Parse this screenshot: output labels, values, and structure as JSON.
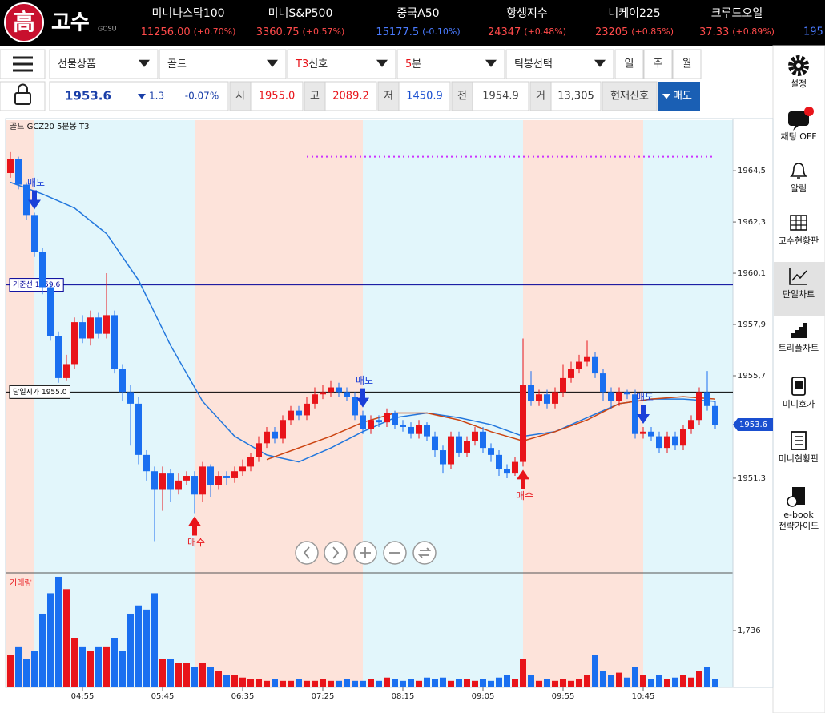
{
  "header": {
    "logo_mark": "高",
    "logo_text": "고수",
    "logo_sub": "GOSU",
    "tickers": [
      {
        "name": "미니나스닥100",
        "price": "11256.00",
        "change": "(+0.70%)",
        "color": "#ff4a4a"
      },
      {
        "name": "미니S&P500",
        "price": "3360.75",
        "change": "(+0.57%)",
        "color": "#ff4a4a"
      },
      {
        "name": "중국A50",
        "price": "15177.5",
        "change": "(-0.10%)",
        "color": "#4a7bff"
      },
      {
        "name": "항셍지수",
        "price": "24347",
        "change": "(+0.48%)",
        "color": "#ff4a4a"
      },
      {
        "name": "니케이225",
        "price": "23205",
        "change": "(+0.85%)",
        "color": "#ff4a4a"
      },
      {
        "name": "크루드오일",
        "price": "37.33",
        "change": "(+0.89%)",
        "color": "#ff4a4a"
      }
    ],
    "ticker_clipped": "195"
  },
  "toolbar": {
    "selects": [
      {
        "text": "선물상품"
      },
      {
        "text": "골드"
      },
      {
        "accent": "T3",
        "text": "신호"
      },
      {
        "accent": "5",
        "text": "분"
      },
      {
        "text": "틱봉선택"
      }
    ],
    "periods": [
      "일",
      "주",
      "월"
    ]
  },
  "quote": {
    "price": "1953.6",
    "change": "1.3",
    "change_pct": "-0.07%",
    "fields": [
      {
        "label": "시",
        "value": "1955.0",
        "color": "#e8141a"
      },
      {
        "label": "고",
        "value": "2089.2",
        "color": "#e8141a"
      },
      {
        "label": "저",
        "value": "1450.9",
        "color": "#1a4fd0"
      },
      {
        "label": "전",
        "value": "1954.9",
        "color": "#444444"
      },
      {
        "label": "거",
        "value": "13,305",
        "color": "#333333"
      }
    ],
    "signal_label": "현재신호",
    "signal": "매도"
  },
  "sidebar": [
    {
      "label": "설정"
    },
    {
      "label": "채팅 OFF"
    },
    {
      "label": "알림"
    },
    {
      "label": "고수현황판"
    },
    {
      "label": "단일차트",
      "selected": true
    },
    {
      "label": "트리플차트"
    },
    {
      "label": "미니호가"
    },
    {
      "label": "미니현황판"
    },
    {
      "label": "e-book",
      "label2": "전략가이드"
    }
  ],
  "chart_data": {
    "type": "candlestick",
    "title": "골드 GCZ20 5분봉 T3",
    "up_color": "#e8141a",
    "down_color": "#1a6ff0",
    "open": [
      1964.4,
      1965.0,
      1963.9,
      1962.6,
      1961.0,
      1959.5,
      1957.4,
      1955.6,
      1956.2,
      1958.0,
      1957.3,
      1958.2,
      1957.5,
      1958.3,
      1956.0,
      1955.0,
      1954.5,
      1952.3,
      1951.6,
      1950.8,
      1951.5,
      1950.8,
      1951.2,
      1951.4,
      1950.6,
      1951.8,
      1951.0,
      1951.4,
      1951.3,
      1951.6,
      1951.8,
      1952.2,
      1952.8,
      1953.3,
      1953.0,
      1953.8,
      1954.2,
      1954.0,
      1954.5,
      1954.9,
      1955.0,
      1955.2,
      1955.0,
      1954.8,
      1954.0,
      1953.4,
      1953.8,
      1953.7,
      1954.1,
      1953.6,
      1953.5,
      1953.2,
      1953.6,
      1953.1,
      1952.5,
      1951.9,
      1953.1,
      1952.4,
      1952.9,
      1953.3,
      1952.6,
      1952.3,
      1951.7,
      1951.5,
      1952.0,
      1955.3,
      1954.6,
      1954.9,
      1954.5,
      1955.0,
      1955.6,
      1956.0,
      1956.3,
      1956.5,
      1955.8,
      1955.0,
      1954.6,
      1955.0,
      1954.9,
      1953.2,
      1953.3,
      1953.1,
      1952.6,
      1953.1,
      1952.7,
      1953.4,
      1953.8,
      1955.0,
      1954.4
    ],
    "high": [
      1965.3,
      1965.1,
      1964.0,
      1962.7,
      1961.2,
      1959.7,
      1957.6,
      1956.6,
      1958.2,
      1958.3,
      1958.5,
      1958.4,
      1960.1,
      1958.5,
      1956.2,
      1955.3,
      1954.8,
      1952.5,
      1951.8,
      1951.8,
      1951.7,
      1951.5,
      1951.6,
      1951.6,
      1952.0,
      1951.9,
      1951.6,
      1951.6,
      1951.8,
      1952.1,
      1952.4,
      1953.1,
      1953.5,
      1953.5,
      1954.0,
      1954.4,
      1954.4,
      1954.8,
      1955.2,
      1955.3,
      1955.5,
      1955.4,
      1955.2,
      1955.0,
      1954.2,
      1954.0,
      1954.0,
      1954.3,
      1954.2,
      1953.8,
      1953.7,
      1953.8,
      1953.7,
      1953.3,
      1952.7,
      1953.3,
      1953.3,
      1953.1,
      1953.5,
      1953.5,
      1952.8,
      1952.5,
      1951.9,
      1952.2,
      1957.3,
      1955.9,
      1955.1,
      1955.1,
      1955.2,
      1956.2,
      1956.3,
      1956.6,
      1957.2,
      1956.7,
      1956.0,
      1955.2,
      1955.2,
      1955.1,
      1955.1,
      1953.5,
      1953.5,
      1953.3,
      1953.3,
      1953.3,
      1953.6,
      1954.0,
      1955.2,
      1955.9,
      1954.6
    ],
    "low": [
      1964.2,
      1963.7,
      1962.4,
      1960.8,
      1959.2,
      1957.2,
      1955.4,
      1955.5,
      1956.0,
      1957.1,
      1957.0,
      1957.3,
      1957.3,
      1955.8,
      1954.6,
      1952.7,
      1951.9,
      1951.2,
      1948.6,
      1949.9,
      1950.3,
      1950.6,
      1951.0,
      1949.8,
      1950.3,
      1950.5,
      1950.8,
      1951.0,
      1951.1,
      1951.4,
      1951.6,
      1952.0,
      1952.6,
      1952.8,
      1952.8,
      1953.6,
      1953.8,
      1953.8,
      1954.3,
      1954.7,
      1954.8,
      1954.8,
      1954.6,
      1953.8,
      1953.2,
      1953.2,
      1953.5,
      1953.5,
      1953.4,
      1953.3,
      1953.0,
      1953.0,
      1952.9,
      1952.2,
      1951.5,
      1951.7,
      1952.2,
      1952.2,
      1952.7,
      1952.4,
      1952.0,
      1951.4,
      1951.3,
      1951.4,
      1951.8,
      1954.4,
      1954.4,
      1954.3,
      1954.3,
      1954.8,
      1955.4,
      1955.8,
      1956.1,
      1955.6,
      1954.6,
      1954.3,
      1954.4,
      1954.7,
      1953.0,
      1953.0,
      1952.9,
      1952.4,
      1952.4,
      1952.5,
      1952.5,
      1953.2,
      1953.6,
      1954.2,
      1953.4
    ],
    "close": [
      1965.0,
      1963.9,
      1962.6,
      1961.0,
      1959.5,
      1957.4,
      1955.6,
      1956.2,
      1958.0,
      1957.3,
      1958.2,
      1957.5,
      1958.3,
      1956.0,
      1955.0,
      1954.5,
      1952.3,
      1951.6,
      1950.8,
      1951.5,
      1950.8,
      1951.2,
      1951.4,
      1950.6,
      1951.8,
      1951.0,
      1951.4,
      1951.3,
      1951.6,
      1951.8,
      1952.2,
      1952.8,
      1953.3,
      1953.0,
      1953.8,
      1954.2,
      1954.0,
      1954.5,
      1954.9,
      1955.0,
      1955.2,
      1955.0,
      1954.8,
      1954.0,
      1953.4,
      1953.8,
      1953.7,
      1954.1,
      1953.6,
      1953.5,
      1953.2,
      1953.6,
      1953.1,
      1952.5,
      1951.9,
      1953.1,
      1952.4,
      1952.9,
      1953.3,
      1952.6,
      1952.3,
      1951.7,
      1951.5,
      1952.0,
      1955.3,
      1954.6,
      1954.9,
      1954.5,
      1955.0,
      1955.6,
      1956.0,
      1956.3,
      1956.5,
      1955.8,
      1955.0,
      1954.6,
      1955.0,
      1954.9,
      1953.2,
      1953.3,
      1953.1,
      1952.6,
      1953.1,
      1952.7,
      1953.4,
      1953.8,
      1955.0,
      1954.4,
      1953.6
    ],
    "ylim": [
      1947.24,
      1966.67
    ],
    "yticks": [
      {
        "value": 1964.5,
        "label": "1964,5"
      },
      {
        "value": 1962.3,
        "label": "1962,3"
      },
      {
        "value": 1960.1,
        "label": "1960,1"
      },
      {
        "value": 1957.9,
        "label": "1957,9"
      },
      {
        "value": 1955.7,
        "label": "1955,7"
      },
      {
        "value": 1951.3,
        "label": "1951,3"
      }
    ],
    "xticks": [
      {
        "value": 9,
        "label": "04:55"
      },
      {
        "value": 19,
        "label": "05:45"
      },
      {
        "value": 29,
        "label": "06:35"
      },
      {
        "value": 39,
        "label": "07:25"
      },
      {
        "value": 49,
        "label": "08:15"
      },
      {
        "value": 59,
        "label": "09:05"
      },
      {
        "value": 69,
        "label": "09:55"
      },
      {
        "value": 79,
        "label": "10:45"
      }
    ],
    "ma": [
      {
        "color": "#2277dd",
        "x": [
          0,
          4,
          8,
          12,
          16,
          20,
          24,
          28,
          32,
          36,
          40,
          44,
          48,
          52,
          56,
          60,
          64,
          68,
          72,
          76,
          80,
          84,
          88
        ],
        "values": [
          1964.0,
          1963.5,
          1962.9,
          1961.8,
          1959.8,
          1957.0,
          1954.6,
          1953.1,
          1952.3,
          1952.0,
          1952.6,
          1953.3,
          1953.9,
          1954.1,
          1953.9,
          1953.6,
          1953.1,
          1953.3,
          1953.9,
          1954.5,
          1954.7,
          1954.7,
          1954.6
        ]
      },
      {
        "color": "#cc4411",
        "x": [
          32,
          36,
          40,
          44,
          48,
          52,
          56,
          60,
          64,
          68,
          72,
          76,
          80,
          84,
          88
        ],
        "values": [
          1952.1,
          1952.6,
          1953.1,
          1953.7,
          1954.1,
          1954.1,
          1953.8,
          1953.3,
          1952.9,
          1953.3,
          1953.8,
          1954.5,
          1954.7,
          1954.8,
          1954.7
        ]
      }
    ],
    "ref_lines": [
      {
        "label": "기준선 1959.6",
        "value": 1959.6,
        "color": "#000099"
      },
      {
        "label": "당일시가 1955.0",
        "value": 1955.0,
        "color": "#000000"
      }
    ],
    "target_line": {
      "value": 1965.1,
      "from": 37,
      "to": 88,
      "color": "#cc33ff"
    },
    "last_price": 1953.6,
    "last_price_color": "#1a4fd0",
    "signals": [
      {
        "label": "매도",
        "index": 3,
        "side": "sell",
        "color": "#1a3fd8"
      },
      {
        "label": "매수",
        "index": 23,
        "side": "buy",
        "color": "#e8141a"
      },
      {
        "label": "매도",
        "index": 44,
        "side": "sell",
        "color": "#1a3fd8"
      },
      {
        "label": "매수",
        "index": 64,
        "side": "buy",
        "color": "#e8141a"
      },
      {
        "label": "매도",
        "index": 79,
        "side": "sell",
        "color": "#1a3fd8"
      }
    ],
    "volume": {
      "label": "거래량",
      "values": [
        1000,
        1250,
        875,
        1125,
        2250,
        2875,
        3375,
        3000,
        1500,
        1250,
        1125,
        1250,
        1250,
        1500,
        1125,
        2250,
        2500,
        2375,
        2875,
        875,
        875,
        750,
        750,
        625,
        750,
        625,
        500,
        375,
        375,
        300,
        250,
        250,
        200,
        250,
        200,
        200,
        250,
        200,
        200,
        250,
        200,
        200,
        250,
        200,
        200,
        250,
        200,
        300,
        250,
        200,
        250,
        200,
        300,
        250,
        300,
        200,
        250,
        250,
        200,
        250,
        200,
        300,
        375,
        250,
        875,
        375,
        200,
        250,
        200,
        250,
        200,
        250,
        375,
        1000,
        500,
        375,
        450,
        300,
        625,
        375,
        250,
        375,
        250,
        300,
        375,
        300,
        500,
        625,
        250
      ],
      "ylim": [
        0,
        3472
      ],
      "yticks": [
        {
          "value": 1736,
          "label": "1,736"
        }
      ]
    }
  }
}
